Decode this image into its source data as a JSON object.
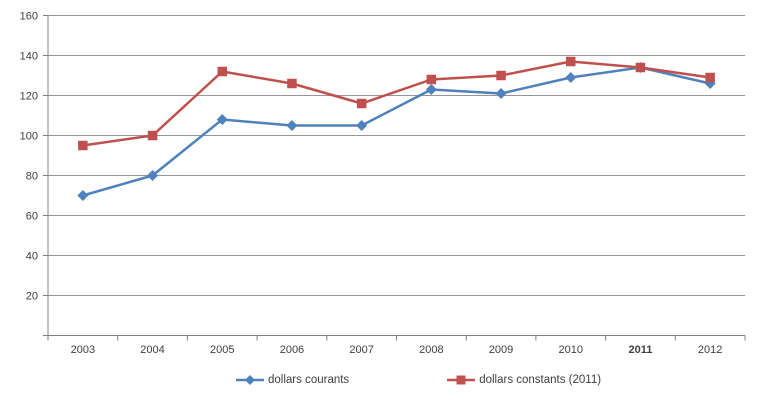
{
  "chart_data": {
    "type": "line",
    "title": "",
    "xlabel": "",
    "ylabel": "",
    "categories": [
      "2003",
      "2004",
      "2005",
      "2006",
      "2007",
      "2008",
      "2009",
      "2010",
      "2011",
      "2012"
    ],
    "series": [
      {
        "name": "dollars courants",
        "color": "#4F81BD",
        "marker": "diamond",
        "values": [
          70,
          80,
          108,
          105,
          105,
          123,
          121,
          129,
          134,
          126
        ]
      },
      {
        "name": "dollars constants (2011)",
        "color": "#C0504D",
        "marker": "square",
        "values": [
          95,
          100,
          132,
          126,
          116,
          128,
          130,
          137,
          134,
          129
        ]
      }
    ],
    "ylim": [
      0,
      160
    ],
    "y_ticks": [
      20,
      40,
      60,
      80,
      100,
      120,
      140,
      160
    ],
    "grid": true,
    "legend_position": "bottom",
    "bold_x_label": "2011",
    "colors": {
      "axis": "#808080",
      "gridline": "#969696",
      "tick_label": "#3F3F3F"
    }
  }
}
